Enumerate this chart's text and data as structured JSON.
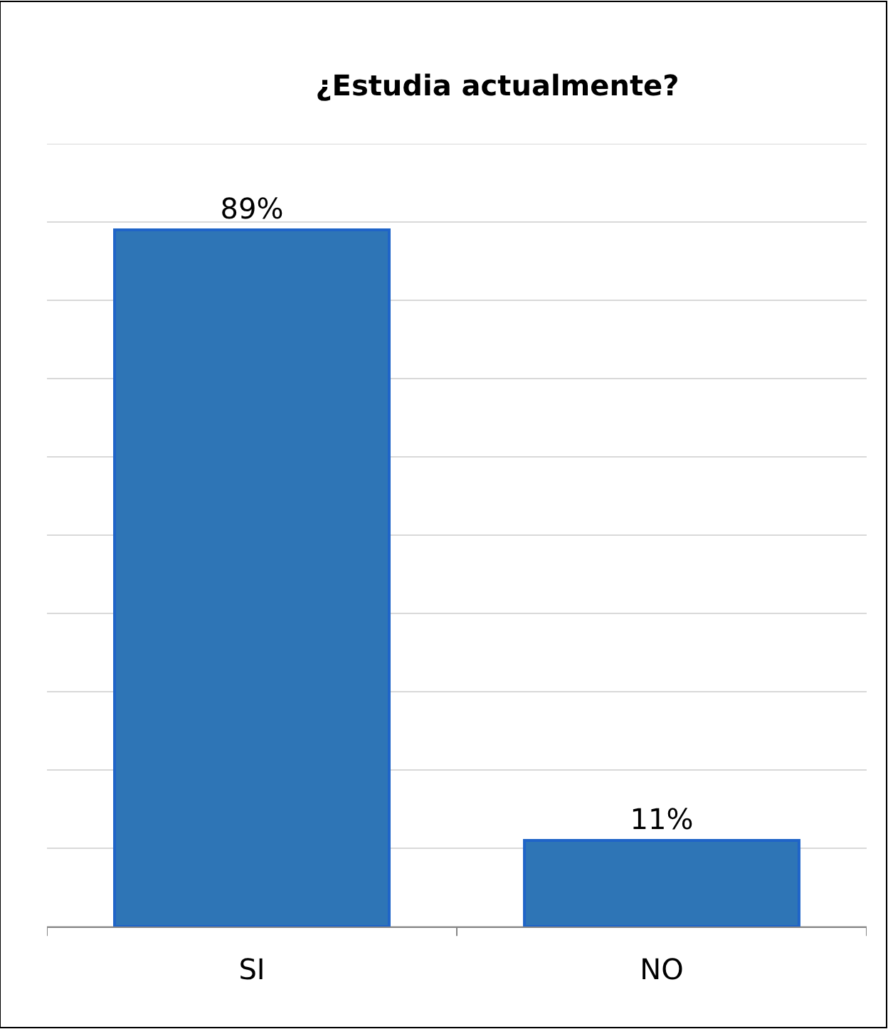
{
  "chart_data": {
    "type": "bar",
    "title": "¿Estudia actualmente?",
    "categories": [
      "SI",
      "NO"
    ],
    "values": [
      89,
      11
    ],
    "value_labels": [
      "89%",
      "11%"
    ],
    "color": "#2e75b6",
    "ylim": [
      0,
      100
    ],
    "yticks": [
      {
        "value": 0,
        "label": null
      },
      {
        "value": 10,
        "label": null
      },
      {
        "value": 20,
        "label": null
      },
      {
        "value": 30,
        "label": null
      },
      {
        "value": 40,
        "label": null
      },
      {
        "value": 50,
        "label": null
      },
      {
        "value": 60,
        "label": null
      },
      {
        "value": 70,
        "label": null
      },
      {
        "value": 80,
        "label": null
      },
      {
        "value": 90,
        "label": null
      },
      {
        "value": 100,
        "label": null
      }
    ],
    "grid": "y",
    "tick_labels": "x"
  }
}
